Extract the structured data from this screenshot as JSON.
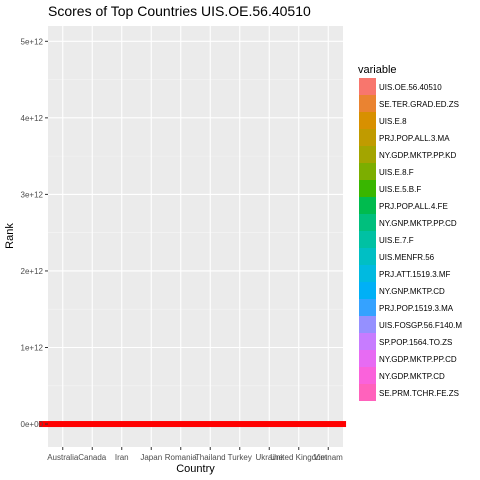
{
  "chart_data": {
    "type": "bar",
    "title": "Scores of Top Countries UIS.OE.56.40510",
    "xlabel": "Country",
    "ylabel": "Rank",
    "ylim": [
      -300000000000,
      5200000000000
    ],
    "y_ticks": [
      0,
      1000000000000,
      2000000000000,
      3000000000000,
      4000000000000,
      5000000000000
    ],
    "y_tick_labels": [
      "0e+00",
      "1e+12",
      "2e+12",
      "3e+12",
      "4e+12",
      "5e+12"
    ],
    "categories": [
      "Australia",
      "Canada",
      "Iran",
      "Japan",
      "Romania",
      "Thailand",
      "Turkey",
      "Ukraine",
      "United Kingdom",
      "Vietnam"
    ],
    "grid": true,
    "legend_position": "right",
    "legend": {
      "title": "variable",
      "items": [
        {
          "label": "UIS.OE.56.40510",
          "color": "#F8766D"
        },
        {
          "label": "SE.TER.GRAD.ED.ZS",
          "color": "#EA8331"
        },
        {
          "label": "UIS.E.8",
          "color": "#D89000"
        },
        {
          "label": "PRJ.POP.ALL.3.MA",
          "color": "#C09B00"
        },
        {
          "label": "NY.GDP.MKTP.PP.KD",
          "color": "#A3A500"
        },
        {
          "label": "UIS.E.8.F",
          "color": "#7CAE00"
        },
        {
          "label": "UIS.E.5.B.F",
          "color": "#39B600"
        },
        {
          "label": "PRJ.POP.ALL.4.FE",
          "color": "#00BB4E"
        },
        {
          "label": "NY.GNP.MKTP.PP.CD",
          "color": "#00BF7D"
        },
        {
          "label": "UIS.E.7.F",
          "color": "#00C1A3"
        },
        {
          "label": "UIS.MENFR.56",
          "color": "#00BFC4"
        },
        {
          "label": "PRJ.ATT.1519.3.MF",
          "color": "#00BAE0"
        },
        {
          "label": "NY.GNP.MKTP.CD",
          "color": "#00B0F6"
        },
        {
          "label": "PRJ.POP.1519.3.MA",
          "color": "#35A2FF"
        },
        {
          "label": "UIS.FOSGP.56.F140.M",
          "color": "#9590FF"
        },
        {
          "label": "SP.POP.1564.TO.ZS",
          "color": "#C77CFF"
        },
        {
          "label": "NY.GDP.MKTP.PP.CD",
          "color": "#E76BF3"
        },
        {
          "label": "NY.GDP.MKTP.CD",
          "color": "#FA62DB"
        },
        {
          "label": "SE.PRM.TCHR.FE.ZS",
          "color": "#FF62BC"
        }
      ]
    },
    "series": [
      {
        "variable": "UIS.OE.56.40510",
        "color": "#FF0000",
        "values": [
          0,
          0,
          0,
          0,
          0,
          0,
          0,
          0,
          0,
          0
        ]
      }
    ]
  }
}
